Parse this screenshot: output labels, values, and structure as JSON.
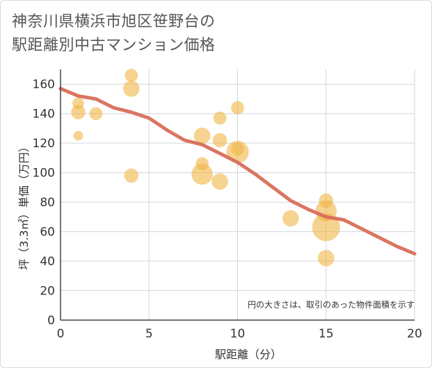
{
  "title_line1": "神奈川県横浜市旭区笹野台の",
  "title_line2": "駅距離別中古マンション価格",
  "chart_data": {
    "type": "scatter",
    "xlabel": "駅距離（分）",
    "ylabel": "坪（3.3㎡）単価（万円）",
    "xlim": [
      0,
      20
    ],
    "ylim": [
      0,
      170
    ],
    "xticks": [
      0,
      5,
      10,
      15,
      20
    ],
    "yticks": [
      0,
      20,
      40,
      60,
      80,
      100,
      120,
      140,
      160
    ],
    "grid": true,
    "note": "円の大きさは、取引のあった物件面積を示す",
    "colors": {
      "bubble": "#f0b545",
      "trend": "#d86e5a",
      "grid": "#cfd6de",
      "axis": "#444444"
    },
    "bubbles": [
      {
        "x": 1,
        "y": 147,
        "size": 1
      },
      {
        "x": 1,
        "y": 141,
        "size": 2
      },
      {
        "x": 1,
        "y": 125,
        "size": 0.5
      },
      {
        "x": 2,
        "y": 140,
        "size": 1.5
      },
      {
        "x": 4,
        "y": 166,
        "size": 1.5
      },
      {
        "x": 4,
        "y": 157,
        "size": 3
      },
      {
        "x": 4,
        "y": 98,
        "size": 2
      },
      {
        "x": 8,
        "y": 125,
        "size": 3
      },
      {
        "x": 8,
        "y": 106,
        "size": 1.5
      },
      {
        "x": 8,
        "y": 99,
        "size": 6
      },
      {
        "x": 9,
        "y": 137,
        "size": 1.5
      },
      {
        "x": 9,
        "y": 122,
        "size": 2
      },
      {
        "x": 9,
        "y": 94,
        "size": 3
      },
      {
        "x": 10,
        "y": 144,
        "size": 1.5
      },
      {
        "x": 10,
        "y": 116,
        "size": 1.5
      },
      {
        "x": 10,
        "y": 114,
        "size": 7
      },
      {
        "x": 13,
        "y": 69,
        "size": 3
      },
      {
        "x": 15,
        "y": 81,
        "size": 2
      },
      {
        "x": 15,
        "y": 74,
        "size": 6
      },
      {
        "x": 15,
        "y": 63,
        "size": 12
      },
      {
        "x": 15,
        "y": 42,
        "size": 3
      }
    ],
    "trend": {
      "x": [
        0,
        1,
        2,
        3,
        4,
        5,
        6,
        7,
        8,
        9,
        10,
        11,
        12,
        13,
        14,
        15,
        16,
        17,
        18,
        19,
        20
      ],
      "y": [
        157,
        152,
        150,
        144,
        141,
        137,
        129,
        122,
        119,
        113,
        107,
        99,
        90,
        81,
        75,
        70,
        68,
        62,
        56,
        50,
        45
      ]
    }
  }
}
